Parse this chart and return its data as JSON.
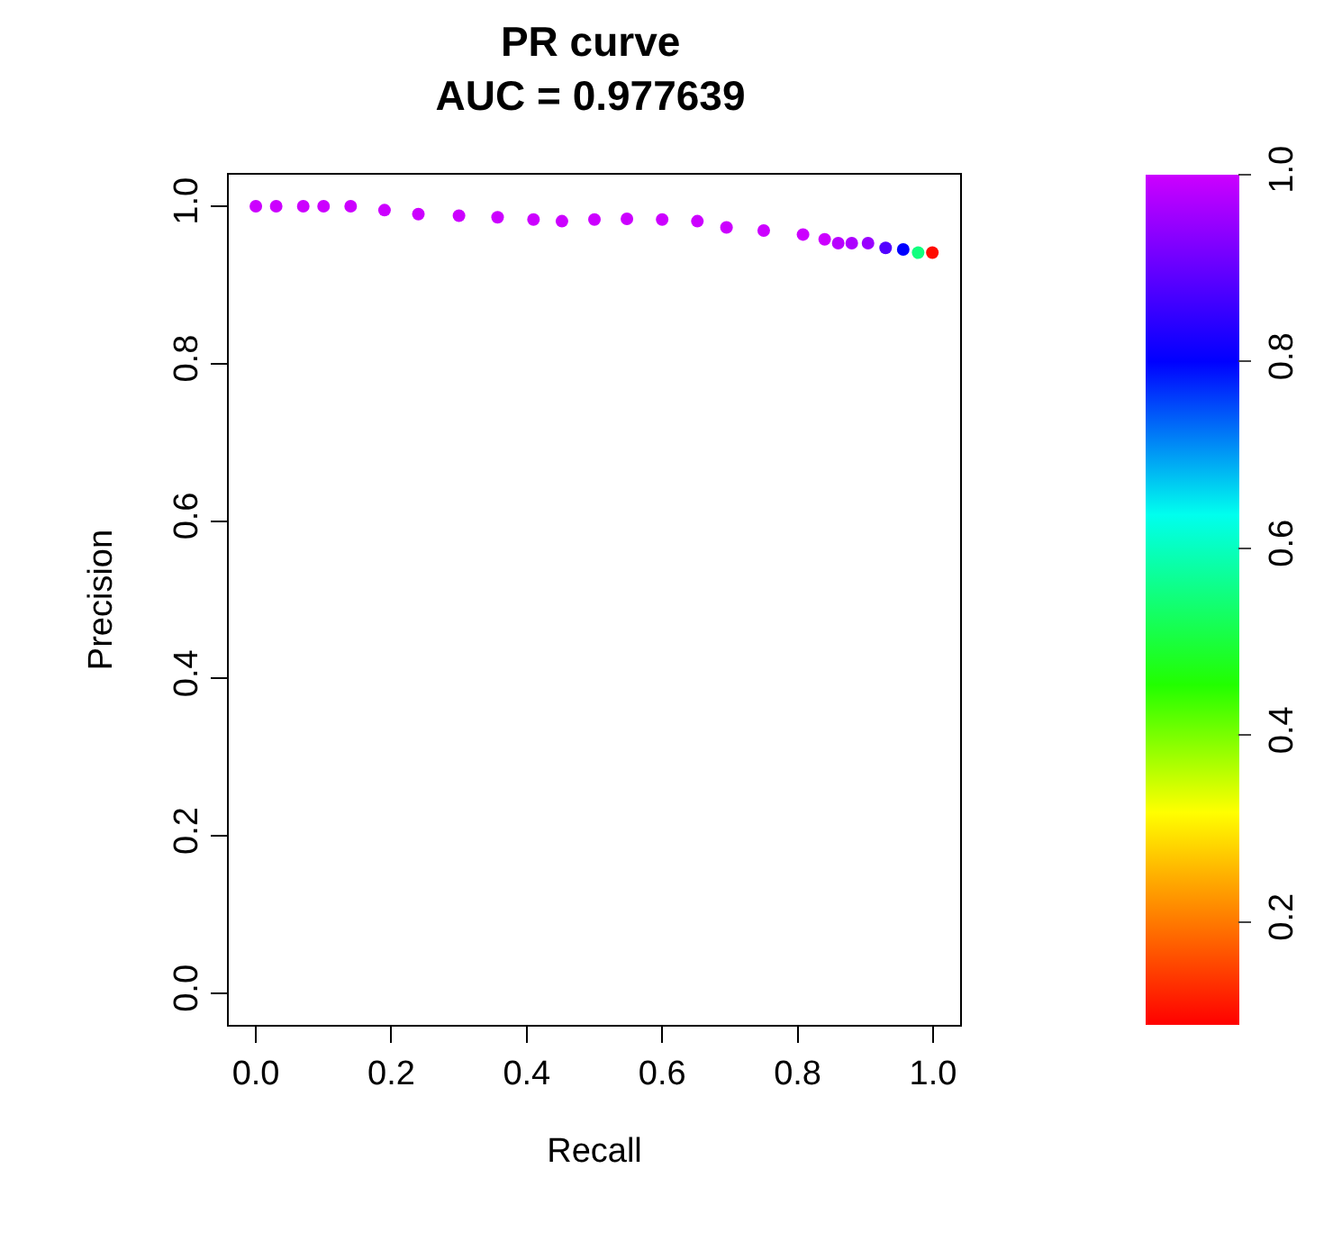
{
  "chart_data": {
    "type": "scatter",
    "title": "PR curve\nAUC = 0.977639",
    "xlabel": "Recall",
    "ylabel": "Precision",
    "x": [
      0,
      0.03,
      0.07,
      0.1,
      0.14,
      0.19,
      0.24,
      0.3,
      0.357,
      0.41,
      0.452,
      0.5,
      0.548,
      0.6,
      0.652,
      0.695,
      0.75,
      0.808,
      0.84,
      0.86,
      0.88,
      0.904,
      0.93,
      0.956,
      0.978,
      0.999
    ],
    "values": [
      1.0,
      1.0,
      1.0,
      1.0,
      1.0,
      0.995,
      0.99,
      0.988,
      0.986,
      0.983,
      0.981,
      0.983,
      0.984,
      0.983,
      0.981,
      0.973,
      0.969,
      0.964,
      0.958,
      0.953,
      0.953,
      0.953,
      0.947,
      0.945,
      0.941,
      0.941
    ],
    "cvalues": [
      1.0,
      1.0,
      1.0,
      1.0,
      1.0,
      1.0,
      1.0,
      1.0,
      1.0,
      1.0,
      1.0,
      1.0,
      1.0,
      1.0,
      1.0,
      1.0,
      1.0,
      1.0,
      1.0,
      0.98,
      0.97,
      0.95,
      0.88,
      0.8,
      0.55,
      0.1
    ],
    "xlim": [
      -0.04,
      1.04
    ],
    "ylim": [
      -0.04,
      1.04
    ],
    "xticks": [
      {
        "value": 0,
        "label": "0.0"
      },
      0.2,
      0.4,
      0.6,
      0.8,
      {
        "value": 1,
        "label": "1.0"
      }
    ],
    "yticks": [
      {
        "value": 0,
        "label": "0.0"
      },
      0.2,
      0.4,
      0.6,
      0.8,
      {
        "value": 1,
        "label": "1.0"
      }
    ],
    "clim": [
      0.09,
      1.0
    ],
    "cticks": [
      0.2,
      0.4,
      0.6,
      0.8,
      {
        "value": 1,
        "label": "1.0"
      }
    ],
    "marker": "circle",
    "grid": false,
    "legend": false
  }
}
